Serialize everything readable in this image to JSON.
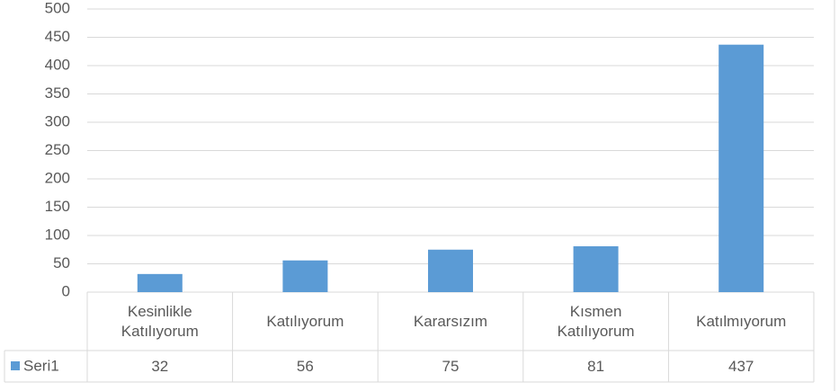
{
  "chart_data": {
    "type": "bar",
    "categories": [
      "Kesinlikle Katılıyorum",
      "Katılıyorum",
      "Kararsızım",
      "Kısmen Katılıyorum",
      "Katılmıyorum"
    ],
    "series": [
      {
        "name": "Seri1",
        "color": "#5b9bd5",
        "values": [
          32,
          56,
          75,
          81,
          437
        ]
      }
    ],
    "ylim": [
      0,
      500
    ],
    "yticks": [
      0,
      50,
      100,
      150,
      200,
      250,
      300,
      350,
      400,
      450,
      500
    ],
    "grid": true
  }
}
